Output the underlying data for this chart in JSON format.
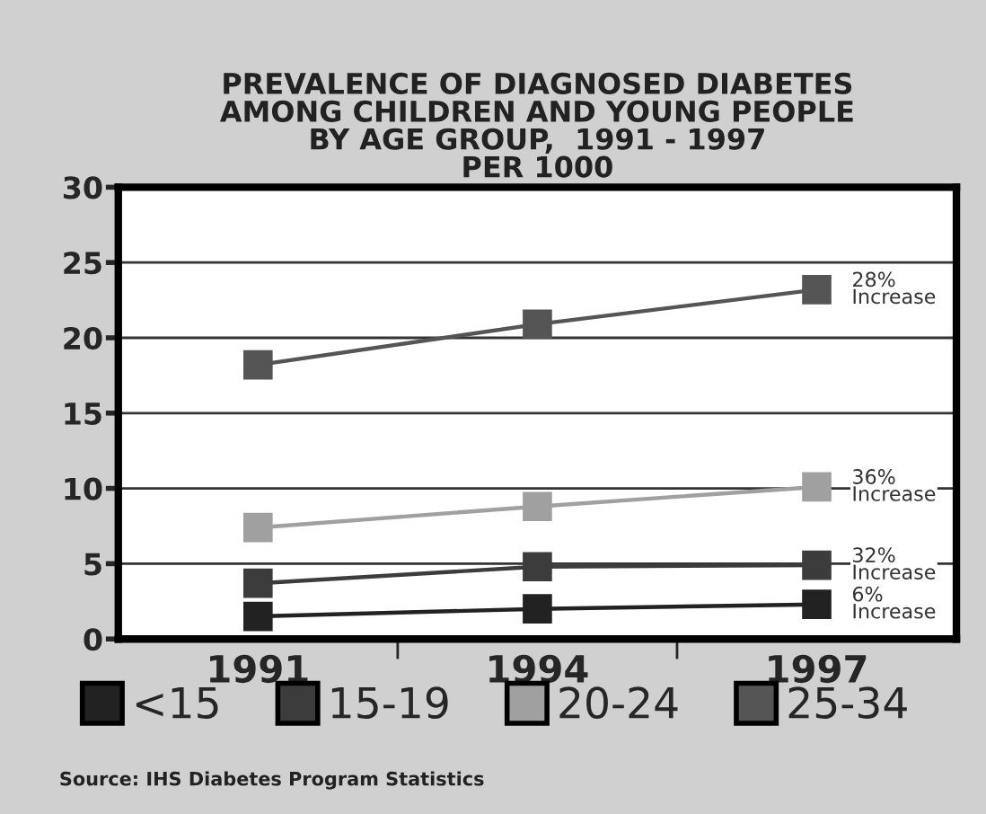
{
  "chart_data": {
    "type": "line",
    "title": "PREVALENCE OF DIAGNOSED DIABETES\nAMONG CHILDREN AND YOUNG PEOPLE\nBY AGE GROUP,  1991 - 1997\nPER 1000",
    "categories": [
      "1991",
      "1994",
      "1997"
    ],
    "series": [
      {
        "name": "<15",
        "color": "#222222",
        "values": [
          1.5,
          2.0,
          2.3
        ]
      },
      {
        "name": "15-19",
        "color": "#3c3c3c",
        "values": [
          3.7,
          4.8,
          4.9
        ]
      },
      {
        "name": "20-24",
        "color": "#a0a0a0",
        "values": [
          7.4,
          8.8,
          10.1
        ]
      },
      {
        "name": "25-34",
        "color": "#555555",
        "values": [
          18.2,
          20.9,
          23.2
        ]
      }
    ],
    "ylim": [
      0,
      30
    ],
    "yticks": [
      0,
      5,
      10,
      15,
      20,
      25,
      30
    ],
    "grid": "y",
    "marker": "square",
    "line_style": "solid",
    "legend": "bottom",
    "annotations": [
      {
        "text": "28%\nIncrease",
        "x": "1997",
        "y": 23.2
      },
      {
        "text": "36%\nIncrease",
        "x": "1997",
        "y": 10.1
      },
      {
        "text": "32%\nIncrease",
        "x": "1997",
        "y": 4.9
      },
      {
        "text": "6%\nIncrease",
        "x": "1997",
        "y": 2.3
      },
      "Source: IHS Diabetes Program Statistics"
    ]
  }
}
